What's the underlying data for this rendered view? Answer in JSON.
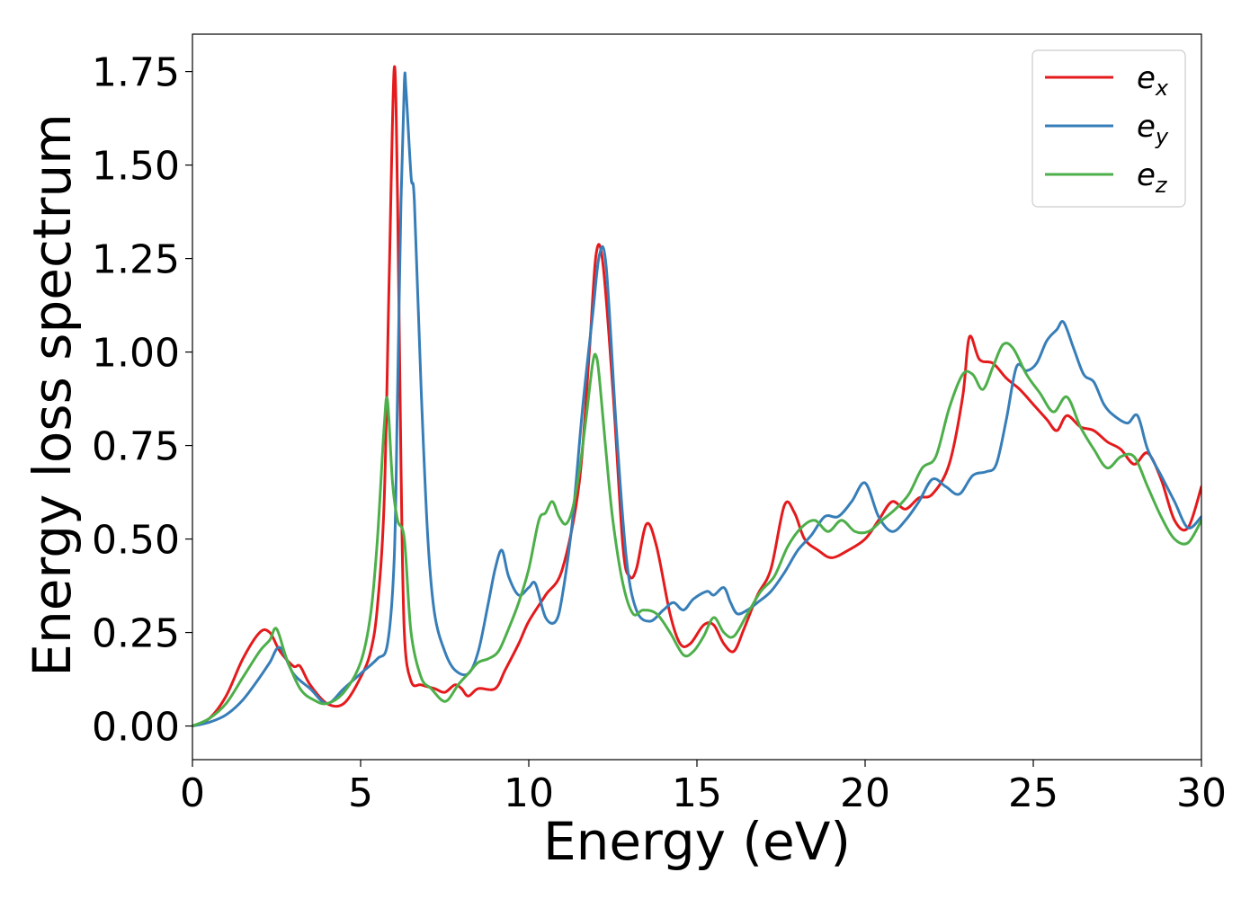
{
  "chart_data": {
    "type": "line",
    "title": "",
    "xlabel": "Energy (eV)",
    "ylabel": "Energy loss spectrum",
    "xlim": [
      0,
      30
    ],
    "ylim": [
      -0.09,
      1.85
    ],
    "xticks": [
      0,
      5,
      10,
      15,
      20,
      25,
      30
    ],
    "xtick_labels": [
      "0",
      "5",
      "10",
      "15",
      "20",
      "25",
      "30"
    ],
    "yticks": [
      0.0,
      0.25,
      0.5,
      0.75,
      1.0,
      1.25,
      1.5,
      1.75
    ],
    "ytick_labels": [
      "0.00",
      "0.25",
      "0.50",
      "0.75",
      "1.00",
      "1.25",
      "1.50",
      "1.75"
    ],
    "grid": false,
    "legend_position": "top-right",
    "series": [
      {
        "name": "e",
        "subscript": "x",
        "color": "#e41a1c",
        "x": [
          0,
          0.5,
          1.0,
          1.5,
          2.0,
          2.3,
          2.6,
          3.0,
          3.2,
          3.5,
          4.0,
          4.5,
          5.0,
          5.3,
          5.5,
          5.7,
          5.85,
          6.0,
          6.1,
          6.2,
          6.3,
          6.5,
          6.8,
          7.2,
          7.5,
          7.8,
          8.0,
          8.2,
          8.5,
          9.0,
          9.3,
          9.7,
          10.0,
          10.5,
          11.0,
          11.5,
          11.8,
          12.0,
          12.2,
          12.5,
          12.8,
          13.0,
          13.2,
          13.5,
          13.8,
          14.2,
          14.5,
          14.8,
          15.2,
          15.5,
          15.8,
          16.1,
          16.4,
          16.8,
          17.2,
          17.6,
          17.9,
          18.2,
          18.6,
          19.0,
          19.5,
          20.0,
          20.4,
          20.8,
          21.2,
          21.6,
          22.0,
          22.5,
          22.9,
          23.1,
          23.4,
          23.8,
          24.2,
          24.6,
          25.0,
          25.4,
          25.7,
          26.0,
          26.4,
          26.8,
          27.2,
          27.6,
          28.0,
          28.4,
          28.8,
          29.2,
          29.6,
          30.0
        ],
        "values": [
          0.0,
          0.02,
          0.08,
          0.18,
          0.25,
          0.25,
          0.2,
          0.16,
          0.16,
          0.11,
          0.06,
          0.06,
          0.13,
          0.2,
          0.32,
          0.6,
          1.2,
          1.76,
          1.4,
          0.7,
          0.25,
          0.12,
          0.11,
          0.1,
          0.09,
          0.11,
          0.1,
          0.08,
          0.1,
          0.1,
          0.15,
          0.22,
          0.28,
          0.35,
          0.42,
          0.65,
          1.0,
          1.26,
          1.24,
          0.9,
          0.48,
          0.4,
          0.42,
          0.54,
          0.48,
          0.3,
          0.22,
          0.22,
          0.27,
          0.27,
          0.22,
          0.2,
          0.26,
          0.35,
          0.42,
          0.59,
          0.57,
          0.5,
          0.47,
          0.45,
          0.47,
          0.5,
          0.55,
          0.6,
          0.58,
          0.61,
          0.62,
          0.7,
          0.88,
          1.04,
          0.98,
          0.97,
          0.93,
          0.9,
          0.86,
          0.82,
          0.79,
          0.83,
          0.8,
          0.79,
          0.76,
          0.74,
          0.7,
          0.73,
          0.66,
          0.55,
          0.53,
          0.64
        ]
      },
      {
        "name": "e",
        "subscript": "y",
        "color": "#377eb8",
        "x": [
          0,
          0.5,
          1.0,
          1.5,
          2.0,
          2.3,
          2.6,
          3.0,
          3.5,
          4.0,
          4.5,
          5.0,
          5.5,
          5.8,
          6.0,
          6.1,
          6.2,
          6.3,
          6.35,
          6.5,
          6.6,
          6.8,
          7.0,
          7.2,
          7.5,
          7.8,
          8.2,
          8.5,
          8.8,
          9.0,
          9.2,
          9.4,
          9.7,
          10.0,
          10.2,
          10.5,
          10.8,
          11.0,
          11.3,
          11.6,
          11.9,
          12.1,
          12.3,
          12.6,
          12.9,
          13.2,
          13.6,
          14.0,
          14.3,
          14.6,
          14.9,
          15.3,
          15.5,
          15.8,
          16.0,
          16.2,
          16.5,
          16.8,
          17.2,
          17.6,
          18.0,
          18.4,
          18.8,
          19.2,
          19.6,
          20.0,
          20.4,
          20.8,
          21.2,
          21.6,
          22.0,
          22.4,
          22.8,
          23.2,
          23.6,
          23.9,
          24.2,
          24.5,
          24.8,
          25.1,
          25.4,
          25.7,
          25.9,
          26.2,
          26.5,
          26.8,
          27.1,
          27.4,
          27.8,
          28.1,
          28.4,
          28.8,
          29.2,
          29.6,
          30.0
        ],
        "values": [
          0.0,
          0.01,
          0.03,
          0.07,
          0.13,
          0.17,
          0.21,
          0.14,
          0.1,
          0.06,
          0.1,
          0.14,
          0.18,
          0.22,
          0.45,
          0.9,
          1.4,
          1.72,
          1.7,
          1.47,
          1.4,
          0.9,
          0.5,
          0.3,
          0.2,
          0.15,
          0.14,
          0.2,
          0.33,
          0.42,
          0.47,
          0.4,
          0.35,
          0.37,
          0.38,
          0.29,
          0.28,
          0.35,
          0.55,
          0.85,
          1.1,
          1.26,
          1.23,
          0.8,
          0.45,
          0.31,
          0.28,
          0.31,
          0.33,
          0.31,
          0.34,
          0.36,
          0.35,
          0.37,
          0.33,
          0.3,
          0.31,
          0.33,
          0.36,
          0.41,
          0.47,
          0.51,
          0.56,
          0.56,
          0.6,
          0.65,
          0.56,
          0.52,
          0.55,
          0.6,
          0.66,
          0.64,
          0.62,
          0.67,
          0.68,
          0.7,
          0.82,
          0.96,
          0.95,
          0.97,
          1.03,
          1.06,
          1.08,
          1.01,
          0.94,
          0.92,
          0.86,
          0.83,
          0.81,
          0.83,
          0.74,
          0.67,
          0.6,
          0.53,
          0.56
        ]
      },
      {
        "name": "e",
        "subscript": "z",
        "color": "#4daf4a",
        "x": [
          0,
          0.5,
          1.0,
          1.5,
          2.0,
          2.3,
          2.5,
          2.8,
          3.2,
          3.6,
          4.0,
          4.5,
          5.0,
          5.3,
          5.5,
          5.7,
          5.8,
          5.95,
          6.1,
          6.3,
          6.5,
          6.8,
          7.1,
          7.4,
          7.6,
          7.9,
          8.2,
          8.5,
          8.8,
          9.1,
          9.4,
          9.7,
          10.0,
          10.3,
          10.5,
          10.7,
          10.9,
          11.1,
          11.3,
          11.5,
          11.7,
          11.9,
          12.0,
          12.1,
          12.3,
          12.5,
          12.8,
          13.1,
          13.4,
          13.8,
          14.2,
          14.6,
          14.9,
          15.2,
          15.5,
          15.8,
          16.1,
          16.5,
          16.9,
          17.3,
          17.7,
          18.1,
          18.5,
          18.9,
          19.3,
          19.7,
          20.1,
          20.5,
          20.9,
          21.3,
          21.7,
          22.1,
          22.5,
          22.9,
          23.2,
          23.5,
          23.8,
          24.1,
          24.4,
          24.8,
          25.2,
          25.6,
          26.0,
          26.4,
          26.8,
          27.2,
          27.6,
          28.0,
          28.4,
          28.8,
          29.2,
          29.6,
          30.0
        ],
        "values": [
          0.0,
          0.02,
          0.06,
          0.13,
          0.2,
          0.23,
          0.26,
          0.18,
          0.1,
          0.07,
          0.06,
          0.09,
          0.17,
          0.3,
          0.5,
          0.8,
          0.87,
          0.65,
          0.55,
          0.5,
          0.25,
          0.13,
          0.1,
          0.07,
          0.07,
          0.11,
          0.14,
          0.17,
          0.18,
          0.2,
          0.26,
          0.33,
          0.42,
          0.55,
          0.57,
          0.6,
          0.56,
          0.54,
          0.58,
          0.68,
          0.82,
          0.97,
          0.99,
          0.93,
          0.73,
          0.55,
          0.38,
          0.3,
          0.31,
          0.3,
          0.25,
          0.19,
          0.2,
          0.24,
          0.29,
          0.25,
          0.24,
          0.3,
          0.36,
          0.4,
          0.48,
          0.53,
          0.55,
          0.52,
          0.55,
          0.52,
          0.52,
          0.55,
          0.58,
          0.62,
          0.69,
          0.72,
          0.85,
          0.94,
          0.94,
          0.9,
          0.96,
          1.02,
          1.01,
          0.94,
          0.89,
          0.84,
          0.88,
          0.8,
          0.74,
          0.69,
          0.72,
          0.72,
          0.64,
          0.56,
          0.5,
          0.49,
          0.55
        ]
      }
    ]
  }
}
